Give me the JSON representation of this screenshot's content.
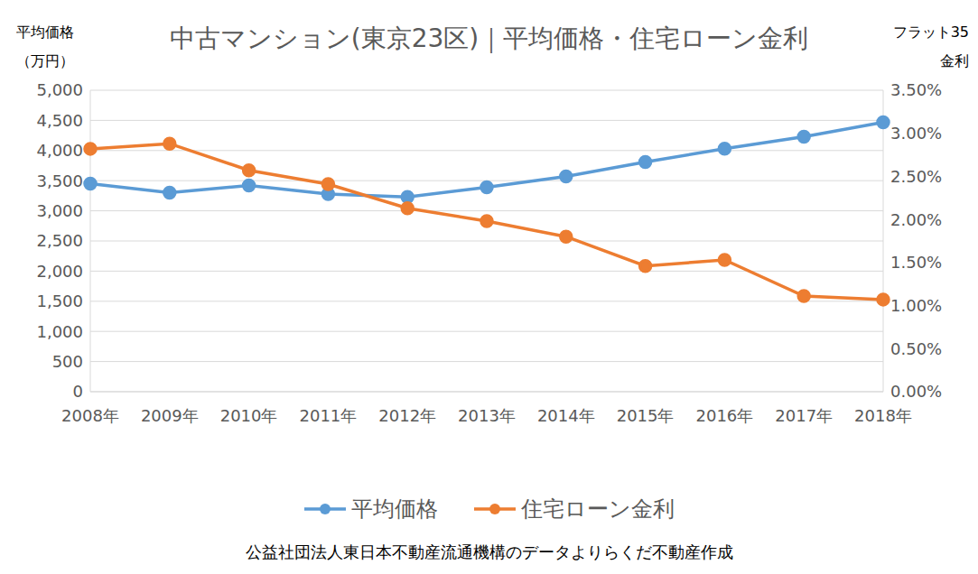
{
  "chart_data": {
    "type": "line",
    "title": "中古マンション(東京23区)｜平均価格・住宅ローン金利",
    "ylabel": [
      "平均価格",
      "（万円）"
    ],
    "y2label": [
      "フラット35",
      "金利"
    ],
    "note": "公益社団法人東日本不動産流通機構のデータよりらくだ不動産作成",
    "categories": [
      "2008年",
      "2009年",
      "2010年",
      "2011年",
      "2012年",
      "2013年",
      "2014年",
      "2015年",
      "2016年",
      "2017年",
      "2018年"
    ],
    "series": [
      {
        "name": "平均価格",
        "color": "#5b9bd5",
        "marker": "circle",
        "values": [
          3450,
          3300,
          3420,
          3280,
          3230,
          3390,
          3570,
          3810,
          4030,
          4230,
          4470
        ]
      },
      {
        "name": "住宅ローン金利",
        "color": "#ed7d31",
        "marker": "circle",
        "axis": "y2",
        "values": [
          2.82,
          2.88,
          2.57,
          2.41,
          2.13,
          1.98,
          1.8,
          1.46,
          1.53,
          1.11,
          1.07
        ]
      }
    ],
    "ylim": [
      0,
      5000
    ],
    "yticks": [
      0,
      500,
      {
        "value": 1000,
        "label": "1,000"
      },
      {
        "value": 1500,
        "label": "1,500"
      },
      {
        "value": 2000,
        "label": "2,000"
      },
      {
        "value": 2500,
        "label": "2,500"
      },
      {
        "value": 3000,
        "label": "3,000"
      },
      {
        "value": 3500,
        "label": "3,500"
      },
      {
        "value": 4000,
        "label": "4,000"
      },
      {
        "value": 4500,
        "label": "4,500"
      },
      {
        "value": 5000,
        "label": "5,000"
      }
    ],
    "y2lim": [
      0,
      3.5
    ],
    "y2ticks": [
      {
        "value": 0,
        "label": "0.00%"
      },
      {
        "value": 0.5,
        "label": "0.50%"
      },
      {
        "value": 1,
        "label": "1.00%"
      },
      {
        "value": 1.5,
        "label": "1.50%"
      },
      {
        "value": 2,
        "label": "2.00%"
      },
      {
        "value": 2.5,
        "label": "2.50%"
      },
      {
        "value": 3,
        "label": "3.00%"
      },
      {
        "value": 3.5,
        "label": "3.50%"
      }
    ],
    "grid": true,
    "legend": "bottom"
  }
}
